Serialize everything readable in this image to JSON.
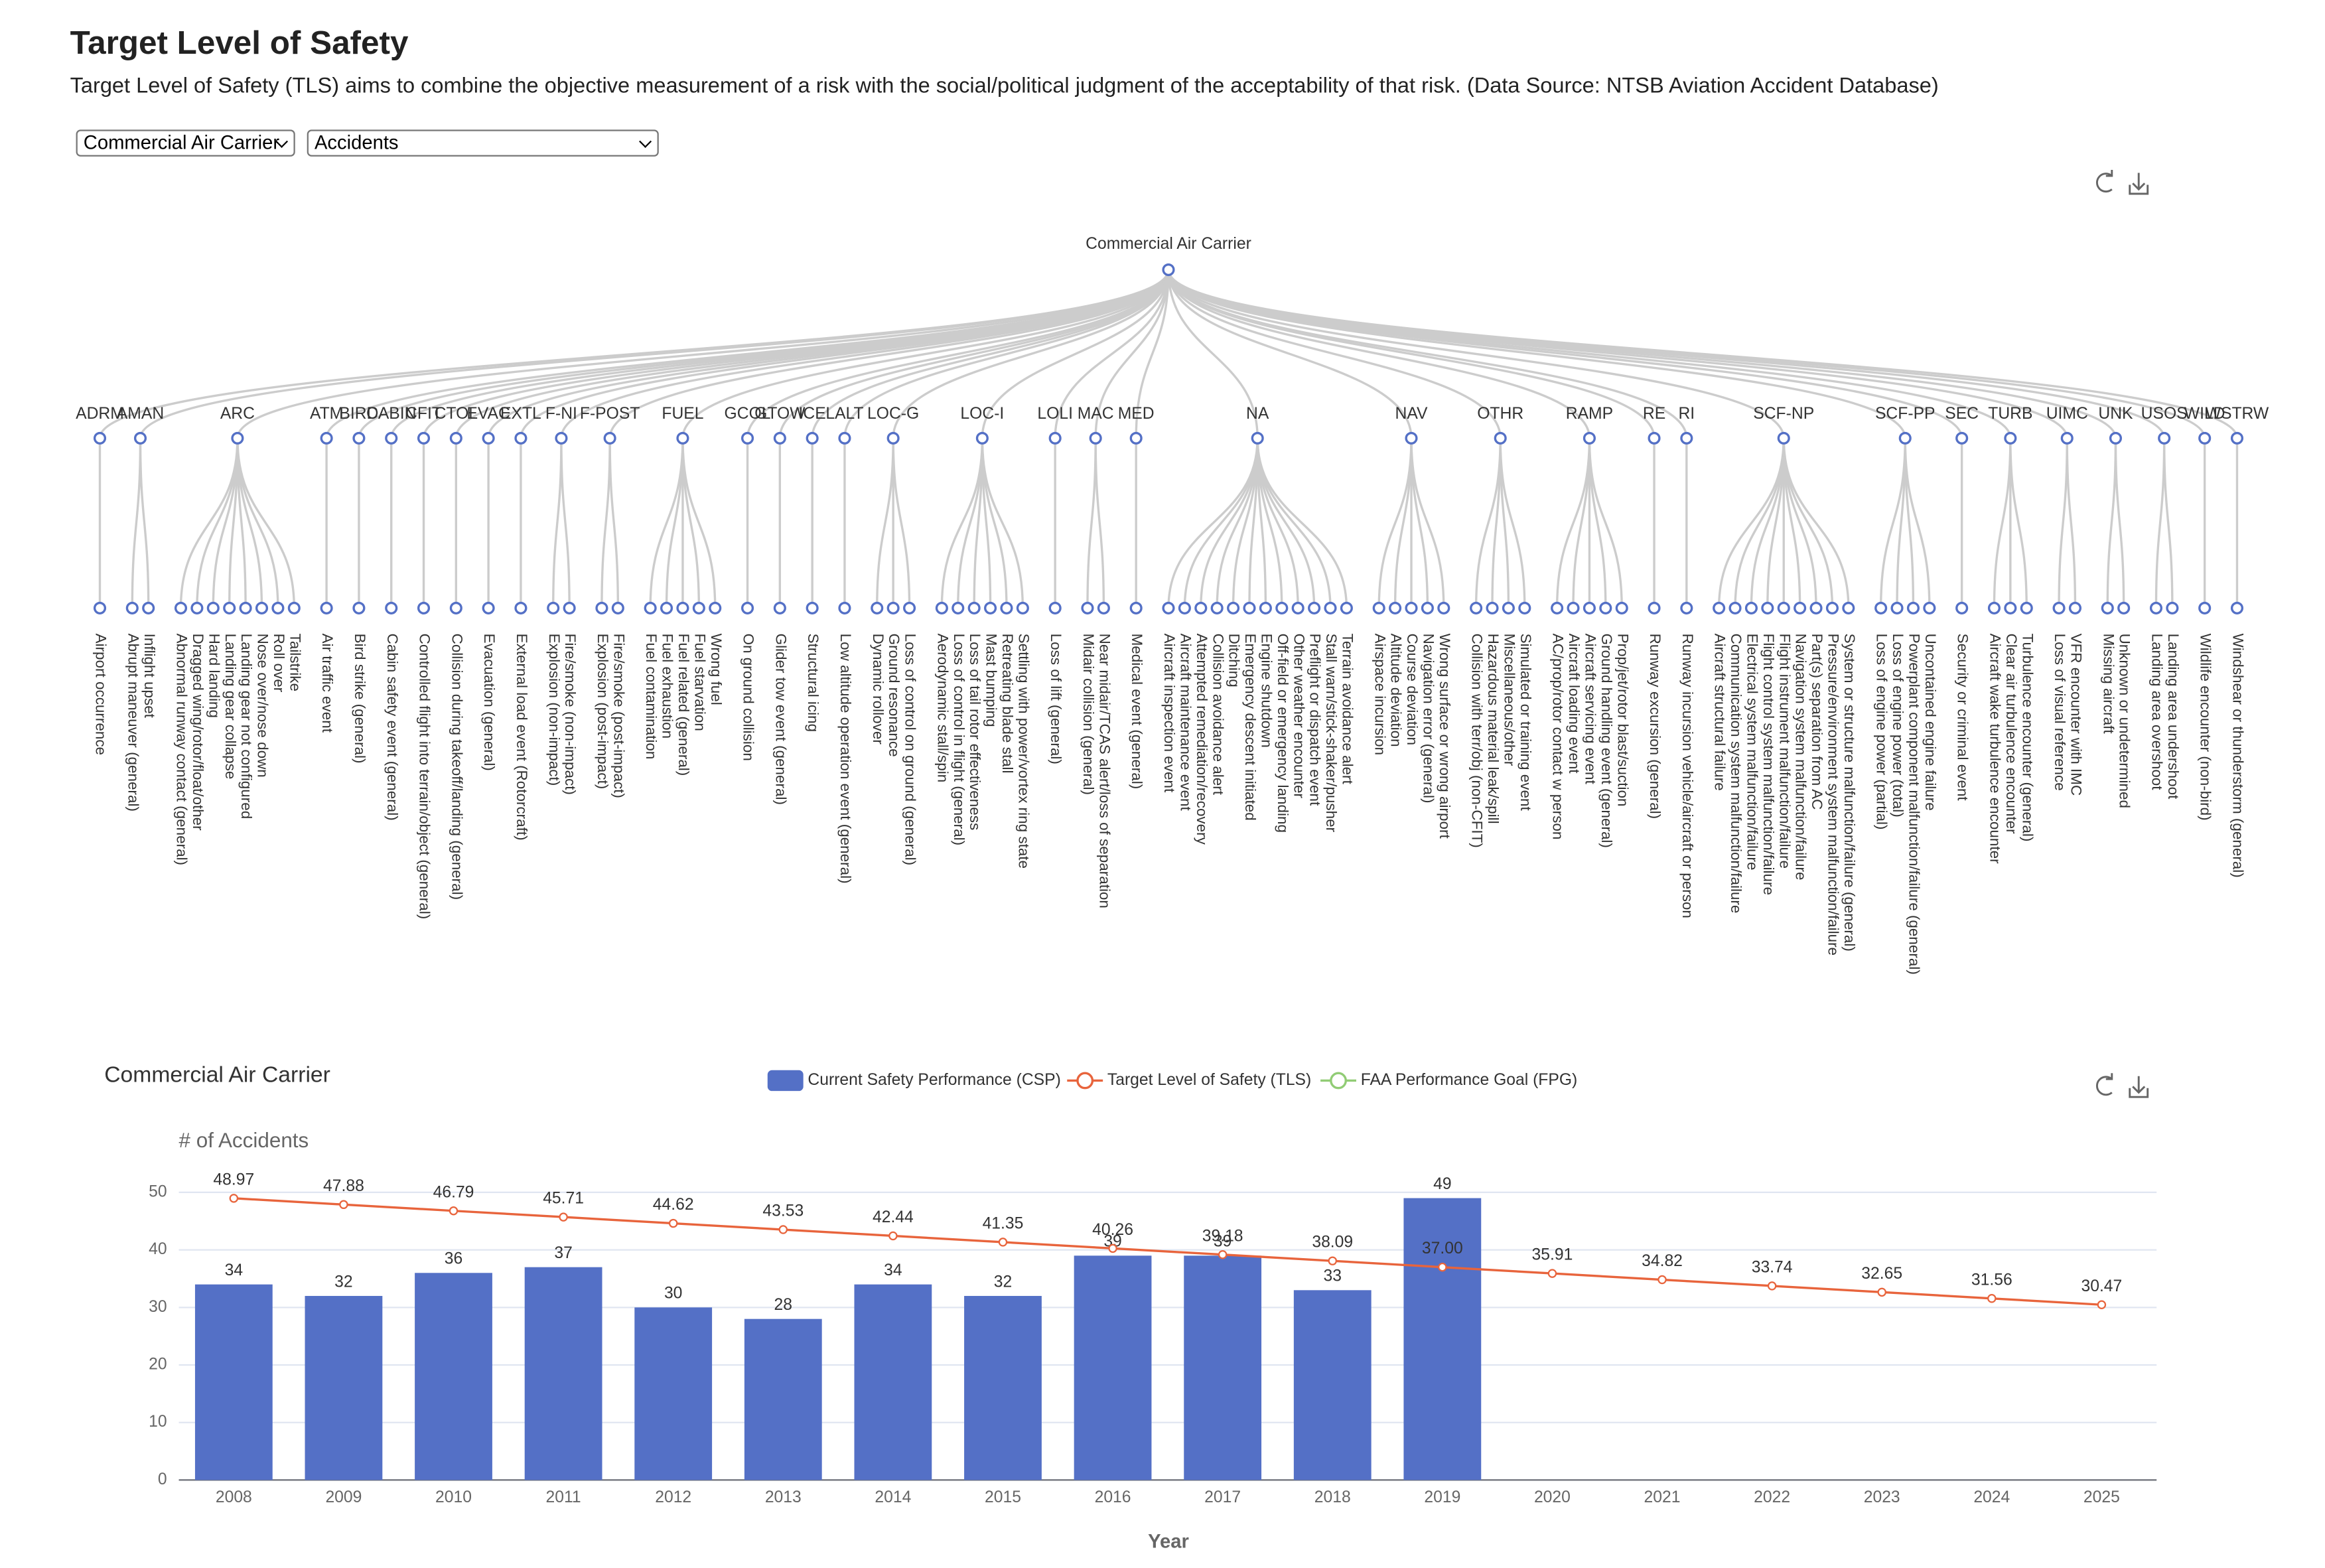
{
  "header": {
    "title": "Target Level of Safety",
    "description": "Target Level of Safety (TLS) aims to combine the objective measurement of a risk with the social/political judgment of the acceptability of that risk. (Data Source: NTSB Aviation Accident Database)"
  },
  "controls": {
    "operation": "Commercial Air Carrier",
    "measure": "Accidents"
  },
  "tree": {
    "root": "Commercial Air Carrier",
    "groups": [
      {
        "code": "ADRM",
        "children": [
          "Airport occurrence"
        ]
      },
      {
        "code": "AMAN",
        "children": [
          "Abrupt maneuver (general)",
          "Inflight upset"
        ]
      },
      {
        "code": "ARC",
        "children": [
          "Abnormal runway contact (general)",
          "Dragged wing/rotor/float/other",
          "Hard landing",
          "Landing gear collapse",
          "Landing gear not configured",
          "Nose over/nose down",
          "Roll over",
          "Tailstrike"
        ]
      },
      {
        "code": "ATM",
        "children": [
          "Air traffic event"
        ]
      },
      {
        "code": "BIRD",
        "children": [
          "Bird strike (general)"
        ]
      },
      {
        "code": "CABIN",
        "children": [
          "Cabin safety event (general)"
        ]
      },
      {
        "code": "CFIT",
        "children": [
          "Controlled flight into terrain/object (general)"
        ]
      },
      {
        "code": "CTOL",
        "children": [
          "Collision during takeoff/landing (general)"
        ]
      },
      {
        "code": "EVAC",
        "children": [
          "Evacuation (general)"
        ]
      },
      {
        "code": "EXTL",
        "children": [
          "External load event (Rotorcraft)"
        ]
      },
      {
        "code": "F-NI",
        "children": [
          "Explosion (non-impact)",
          "Fire/smoke (non-impact)"
        ]
      },
      {
        "code": "F-POST",
        "children": [
          "Explosion (post-impact)",
          "Fire/smoke (post-impact)"
        ]
      },
      {
        "code": "FUEL",
        "children": [
          "Fuel contamination",
          "Fuel exhaustion",
          "Fuel related (general)",
          "Fuel starvation",
          "Wrong fuel"
        ]
      },
      {
        "code": "GCOL",
        "children": [
          "On ground collision"
        ]
      },
      {
        "code": "GTOW",
        "children": [
          "Glider tow event (general)"
        ]
      },
      {
        "code": "ICE",
        "children": [
          "Structural icing"
        ]
      },
      {
        "code": "LALT",
        "children": [
          "Low altitude operation event (general)"
        ]
      },
      {
        "code": "LOC-G",
        "children": [
          "Dynamic rollover",
          "Ground resonance",
          "Loss of control on ground (general)"
        ]
      },
      {
        "code": "LOC-I",
        "children": [
          "Aerodynamic stall/spin",
          "Loss of control in flight (general)",
          "Loss of tail rotor effectiveness",
          "Mast bumping",
          "Retreating blade stall",
          "Settling with power/vortex ring state"
        ]
      },
      {
        "code": "LOLI",
        "children": [
          "Loss of lift (general)"
        ]
      },
      {
        "code": "MAC",
        "children": [
          "Midair collision (general)",
          "Near midair/TCAS alert/loss of separation"
        ]
      },
      {
        "code": "MED",
        "children": [
          "Medical event (general)"
        ]
      },
      {
        "code": "NA",
        "children": [
          "Aircraft inspection event",
          "Aircraft maintenance event",
          "Attempted remediation/recovery",
          "Collision avoidance alert",
          "Ditching",
          "Emergency descent initiated",
          "Engine shutdown",
          "Off-field or emergency landing",
          "Other weather encounter",
          "Preflight or dispatch event",
          "Stall warn/stick-shaker/pusher",
          "Terrain avoidance alert"
        ]
      },
      {
        "code": "NAV",
        "children": [
          "Airspace incursion",
          "Altitude deviation",
          "Course deviation",
          "Navigation error (general)",
          "Wrong surface or wrong airport"
        ]
      },
      {
        "code": "OTHR",
        "children": [
          "Collision with terr/obj (non-CFIT)",
          "Hazardous material leak/spill",
          "Miscellaneous/other",
          "Simulated or training event"
        ]
      },
      {
        "code": "RAMP",
        "children": [
          "AC/prop/rotor contact w person",
          "Aircraft loading event",
          "Aircraft servicing event",
          "Ground handling event (general)",
          "Prop/jet/rotor blast/suction"
        ]
      },
      {
        "code": "RE",
        "children": [
          "Runway excursion (general)"
        ]
      },
      {
        "code": "RI",
        "children": [
          "Runway incursion vehicle/aircraft or person"
        ]
      },
      {
        "code": "SCF-NP",
        "children": [
          "Aircraft structural failure",
          "Communication system malfunction/failure",
          "Electrical system malfunction/failure",
          "Flight control system malfunction/failure",
          "Flight instrument malfunction/failure",
          "Navigation system malfunction/failure",
          "Part(s) separation from AC",
          "Pressure/environment system malfunction/failure",
          "System or structure malfunction/failure (general)"
        ]
      },
      {
        "code": "SCF-PP",
        "children": [
          "Loss of engine power (partial)",
          "Loss of engine power (total)",
          "Powerplant component malfunction/failure (general)",
          "Uncontained engine failure"
        ]
      },
      {
        "code": "SEC",
        "children": [
          "Security or criminal event"
        ]
      },
      {
        "code": "TURB",
        "children": [
          "Aircraft wake turbulence encounter",
          "Clear air turbulence encounter",
          "Turbulence encounter (general)"
        ]
      },
      {
        "code": "UIMC",
        "children": [
          "Loss of visual reference",
          "VFR encounter with IMC"
        ]
      },
      {
        "code": "UNK",
        "children": [
          "Missing aircraft",
          "Unknown or undetermined"
        ]
      },
      {
        "code": "USOS",
        "children": [
          "Landing area overshoot",
          "Landing area undershoot"
        ]
      },
      {
        "code": "WILD",
        "children": [
          "Wildlife encounter (non-bird)"
        ]
      },
      {
        "code": "WSTRW",
        "children": [
          "Windshear or thunderstorm (general)"
        ]
      }
    ]
  },
  "chart_data": {
    "type": "bar",
    "title": "Commercial Air Carrier",
    "y_label": "# of Accidents",
    "x_label": "Year",
    "categories": [
      "2008",
      "2009",
      "2010",
      "2011",
      "2012",
      "2013",
      "2014",
      "2015",
      "2016",
      "2017",
      "2018",
      "2019",
      "2020",
      "2021",
      "2022",
      "2023",
      "2024",
      "2025"
    ],
    "series": [
      {
        "name": "Current Safety Performance (CSP)",
        "type": "bar",
        "color": "#5470c6",
        "values": [
          34,
          32,
          36,
          37,
          30,
          28,
          34,
          32,
          39,
          39,
          33,
          49,
          null,
          null,
          null,
          null,
          null,
          null
        ]
      },
      {
        "name": "Target Level of Safety (TLS)",
        "type": "line",
        "color": "#e8643c",
        "values": [
          48.97,
          47.88,
          46.79,
          45.71,
          44.62,
          43.53,
          42.44,
          41.35,
          40.26,
          39.18,
          38.09,
          37.0,
          35.91,
          34.82,
          33.74,
          32.65,
          31.56,
          30.47
        ],
        "value_labels": [
          "48.97",
          "47.88",
          "46.79",
          "45.71",
          "44.62",
          "43.53",
          "42.44",
          "41.35",
          "40.26",
          "39.18",
          "38.09",
          "37.00",
          "35.91",
          "34.82",
          "33.74",
          "32.65",
          "31.56",
          "30.47"
        ]
      },
      {
        "name": "FAA Performance Goal (FPG)",
        "type": "line",
        "color": "#91cc75",
        "values": [
          null,
          null,
          null,
          null,
          null,
          null,
          null,
          null,
          null,
          null,
          null,
          null,
          null,
          null,
          null,
          null,
          null,
          null
        ]
      }
    ],
    "ylim": [
      0,
      50
    ],
    "yticks": [
      0,
      10,
      20,
      30,
      40,
      50
    ],
    "grid": true,
    "legend": "top"
  }
}
